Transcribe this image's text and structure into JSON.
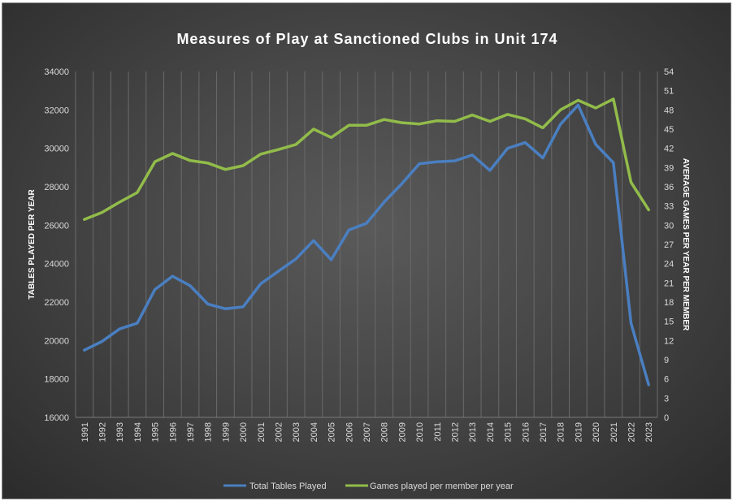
{
  "chart_data": {
    "type": "line",
    "title": "Measures of Play at Sanctioned Clubs in Unit 174",
    "ylabel_left": "TABLES PLAYED PER YEAR",
    "ylabel_right": "AVERAGE GAMES PER YEAR PER MEMBER",
    "xlabel": "",
    "categories": [
      "1991",
      "1992",
      "1993",
      "1994",
      "1995",
      "1996",
      "1997",
      "1998",
      "1999",
      "2000",
      "2001",
      "2002",
      "2003",
      "2004",
      "2005",
      "2006",
      "2007",
      "2008",
      "2009",
      "2010",
      "2011",
      "2012",
      "2013",
      "2014",
      "2015",
      "2016",
      "2017",
      "2018",
      "2019",
      "2020",
      "2021",
      "2022",
      "2023"
    ],
    "ylim_left": [
      16000,
      34000
    ],
    "yticks_left": [
      16000,
      18000,
      20000,
      22000,
      24000,
      26000,
      28000,
      30000,
      32000,
      34000
    ],
    "ylim_right": [
      0,
      54
    ],
    "yticks_right": [
      0,
      3,
      6,
      9,
      12,
      15,
      18,
      21,
      24,
      27,
      30,
      33,
      36,
      39,
      42,
      45,
      48,
      51,
      54
    ],
    "grid": "vertical",
    "legend_position": "bottom",
    "series": [
      {
        "name": "Total Tables Played",
        "axis": "left",
        "color": "#4a7fc1",
        "values": [
          19500,
          19950,
          20600,
          20900,
          22650,
          23350,
          22850,
          21900,
          21650,
          21750,
          22950,
          23600,
          24250,
          25200,
          24200,
          25750,
          26100,
          27200,
          28150,
          29200,
          29300,
          29350,
          29650,
          28850,
          30000,
          30300,
          29500,
          31250,
          32250,
          30200,
          29250,
          20900,
          17700
        ]
      },
      {
        "name": "Games played per member per year",
        "axis": "right",
        "color": "#92bc4a",
        "values": [
          30.9,
          32.0,
          33.6,
          35.1,
          39.9,
          41.2,
          40.1,
          39.7,
          38.7,
          39.3,
          41.1,
          41.8,
          42.6,
          45.0,
          43.7,
          45.6,
          45.6,
          46.5,
          46.0,
          45.8,
          46.3,
          46.2,
          47.2,
          46.2,
          47.3,
          46.6,
          45.2,
          48.0,
          49.5,
          48.3,
          49.7,
          36.7,
          32.4
        ]
      }
    ]
  }
}
